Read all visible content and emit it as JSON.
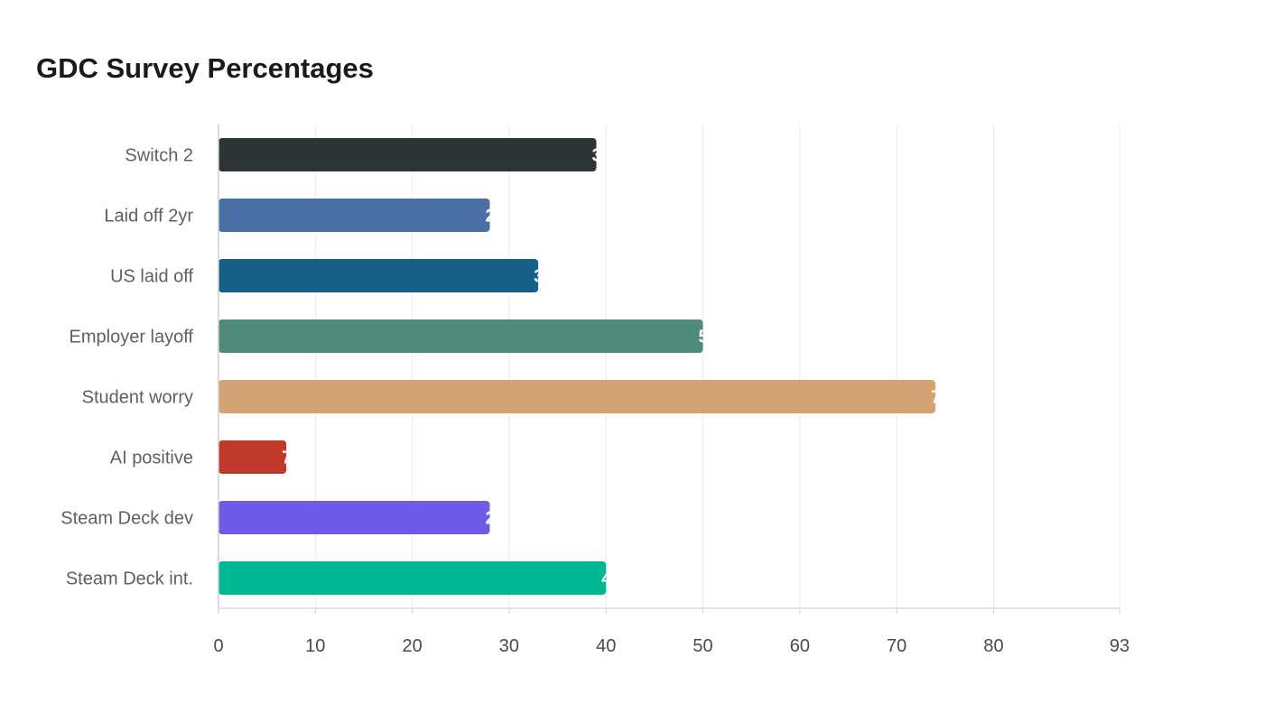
{
  "chart_data": {
    "type": "bar",
    "orientation": "horizontal",
    "title": "GDC Survey Percentages",
    "xlabel": "",
    "ylabel": "",
    "categories": [
      "Switch 2",
      "Laid off 2yr",
      "US laid off",
      "Employer layoff",
      "Student worry",
      "AI positive",
      "Steam Deck dev",
      "Steam Deck int."
    ],
    "values": [
      39,
      28,
      33,
      50,
      74,
      7,
      28,
      40
    ],
    "colors": [
      "#2d3436",
      "#4a6fa5",
      "#166088",
      "#4f8a7a",
      "#d4a373",
      "#c0392b",
      "#6c5ce7",
      "#00b894"
    ],
    "xlim": [
      0,
      93
    ],
    "xticks": [
      0,
      10,
      20,
      30,
      40,
      50,
      60,
      70,
      80,
      93
    ],
    "grid": true,
    "legend": "none"
  }
}
